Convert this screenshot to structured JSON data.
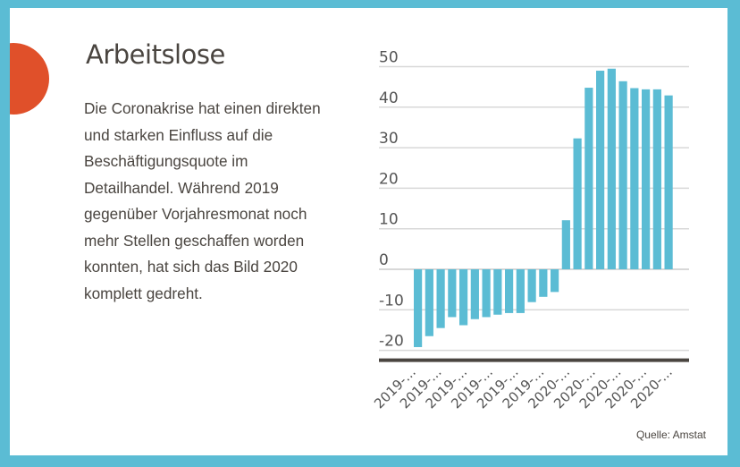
{
  "title": "Arbeitslose",
  "description": "Die Coronakrise hat einen direkten und starken Einfluss auf die Beschäftigungsquote im Detailhandel. Während 2019 gegenüber Vorjahresmonat noch mehr Stellen geschaffen worden konnten, hat sich das Bild 2020 komplett gedreht.",
  "source": "Quelle: Amstat",
  "colors": {
    "frame": "#5bbcd4",
    "accent_dot": "#e0502a",
    "bar": "#5bbcd4",
    "axis": "#4a4540",
    "grid": "#d8d8d8"
  },
  "chart_data": {
    "type": "bar",
    "title": "",
    "xlabel": "",
    "ylabel": "",
    "ylim": [
      -20,
      50
    ],
    "yticks": [
      50,
      40,
      30,
      20,
      10,
      0,
      -10,
      -20
    ],
    "grid": true,
    "tick_labels": [
      "2019-...",
      "2019-...",
      "2019-...",
      "2019-...",
      "2019-...",
      "2019-...",
      "2020-...",
      "2020-...",
      "2020-...",
      "2020-...",
      "2020-..."
    ],
    "values": [
      -19.2,
      -16.5,
      -14.5,
      -11.8,
      -13.8,
      -12.3,
      -11.8,
      -11.2,
      -10.8,
      -10.8,
      -8.1,
      -6.8,
      -5.6,
      12.1,
      32.3,
      44.8,
      49.0,
      49.5,
      46.4,
      44.7,
      44.4,
      44.4,
      42.9
    ]
  }
}
